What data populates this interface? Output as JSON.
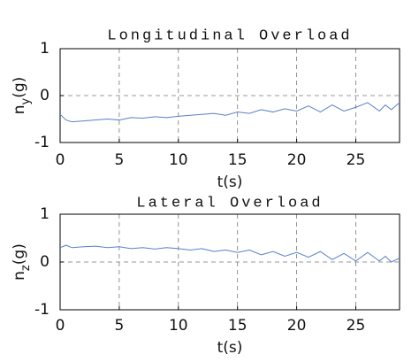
{
  "chart_data": [
    {
      "type": "line",
      "title": "Longitudinal Overload",
      "xlabel": "t(s)",
      "ylabel": [
        "n",
        "y",
        "(g)"
      ],
      "x": [
        0,
        0.5,
        1,
        2,
        3,
        4,
        5,
        6,
        7,
        8,
        9,
        10,
        11,
        12,
        13,
        14,
        15,
        16,
        17,
        18,
        19,
        20,
        21,
        22,
        23,
        24,
        25,
        26,
        27,
        27.5,
        28,
        28.7
      ],
      "values": [
        -0.4,
        -0.52,
        -0.56,
        -0.54,
        -0.52,
        -0.5,
        -0.52,
        -0.47,
        -0.48,
        -0.45,
        -0.47,
        -0.44,
        -0.42,
        -0.4,
        -0.38,
        -0.42,
        -0.35,
        -0.38,
        -0.3,
        -0.35,
        -0.28,
        -0.33,
        -0.22,
        -0.35,
        -0.2,
        -0.33,
        -0.25,
        -0.15,
        -0.33,
        -0.2,
        -0.3,
        -0.15
      ],
      "color": "#5b7fc9",
      "xlim": [
        0,
        28.7
      ],
      "ylim": [
        -1,
        1
      ],
      "xticks": [
        0,
        5,
        10,
        15,
        20,
        25
      ],
      "yticks": [
        -1,
        0,
        1
      ],
      "grid": true
    },
    {
      "type": "line",
      "title": "Lateral Overload",
      "xlabel": "t(s)",
      "ylabel": [
        "n",
        "z",
        "(g)"
      ],
      "x": [
        0,
        0.5,
        1,
        2,
        3,
        4,
        5,
        6,
        7,
        8,
        9,
        10,
        11,
        12,
        13,
        14,
        15,
        16,
        17,
        18,
        19,
        20,
        21,
        22,
        23,
        24,
        25,
        26,
        27,
        27.5,
        28,
        28.7
      ],
      "values": [
        0.3,
        0.35,
        0.3,
        0.32,
        0.33,
        0.3,
        0.32,
        0.28,
        0.3,
        0.27,
        0.3,
        0.28,
        0.25,
        0.28,
        0.22,
        0.25,
        0.2,
        0.25,
        0.15,
        0.22,
        0.12,
        0.2,
        0.1,
        0.22,
        0.05,
        0.18,
        0.02,
        0.2,
        0.02,
        0.12,
        0.0,
        0.08
      ],
      "color": "#5b7fc9",
      "xlim": [
        0,
        28.7
      ],
      "ylim": [
        -1,
        1
      ],
      "xticks": [
        0,
        5,
        10,
        15,
        20,
        25
      ],
      "yticks": [
        -1,
        0,
        1
      ],
      "grid": true
    }
  ]
}
